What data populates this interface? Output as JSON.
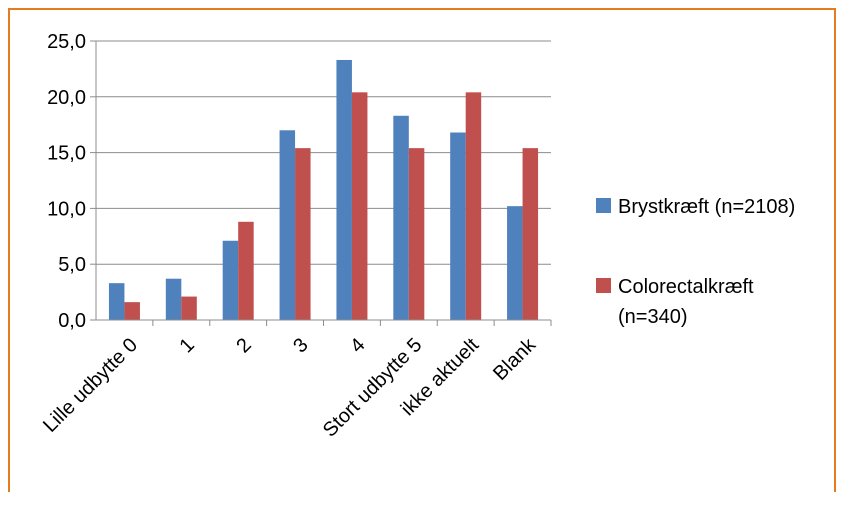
{
  "chart_data": {
    "type": "bar",
    "categories": [
      "Lille udbytte 0",
      "1",
      "2",
      "3",
      "4",
      "Stort udbytte 5",
      "ikke aktuelt",
      "Blank"
    ],
    "series": [
      {
        "name": "Brystkræft (n=2108)",
        "values": [
          3.3,
          3.7,
          7.1,
          17.0,
          23.3,
          18.3,
          16.8,
          10.2
        ],
        "color": "#4f81bd"
      },
      {
        "name": "Colorectalkræft (n=340)",
        "values": [
          1.6,
          2.1,
          8.8,
          15.4,
          20.4,
          15.4,
          20.4,
          15.4
        ],
        "color": "#c0504d"
      }
    ],
    "ylim": [
      0,
      25
    ],
    "yticks": [
      "0,0",
      "5,0",
      "10,0",
      "15,0",
      "20,0",
      "25,0"
    ],
    "grid": true,
    "legend": "right",
    "title": "",
    "xlabel": "",
    "ylabel": ""
  },
  "legend": {
    "series1": "Brystkræft (n=2108)",
    "series2_line1": "Colorectalkræft",
    "series2_line2": "(n=340)"
  }
}
